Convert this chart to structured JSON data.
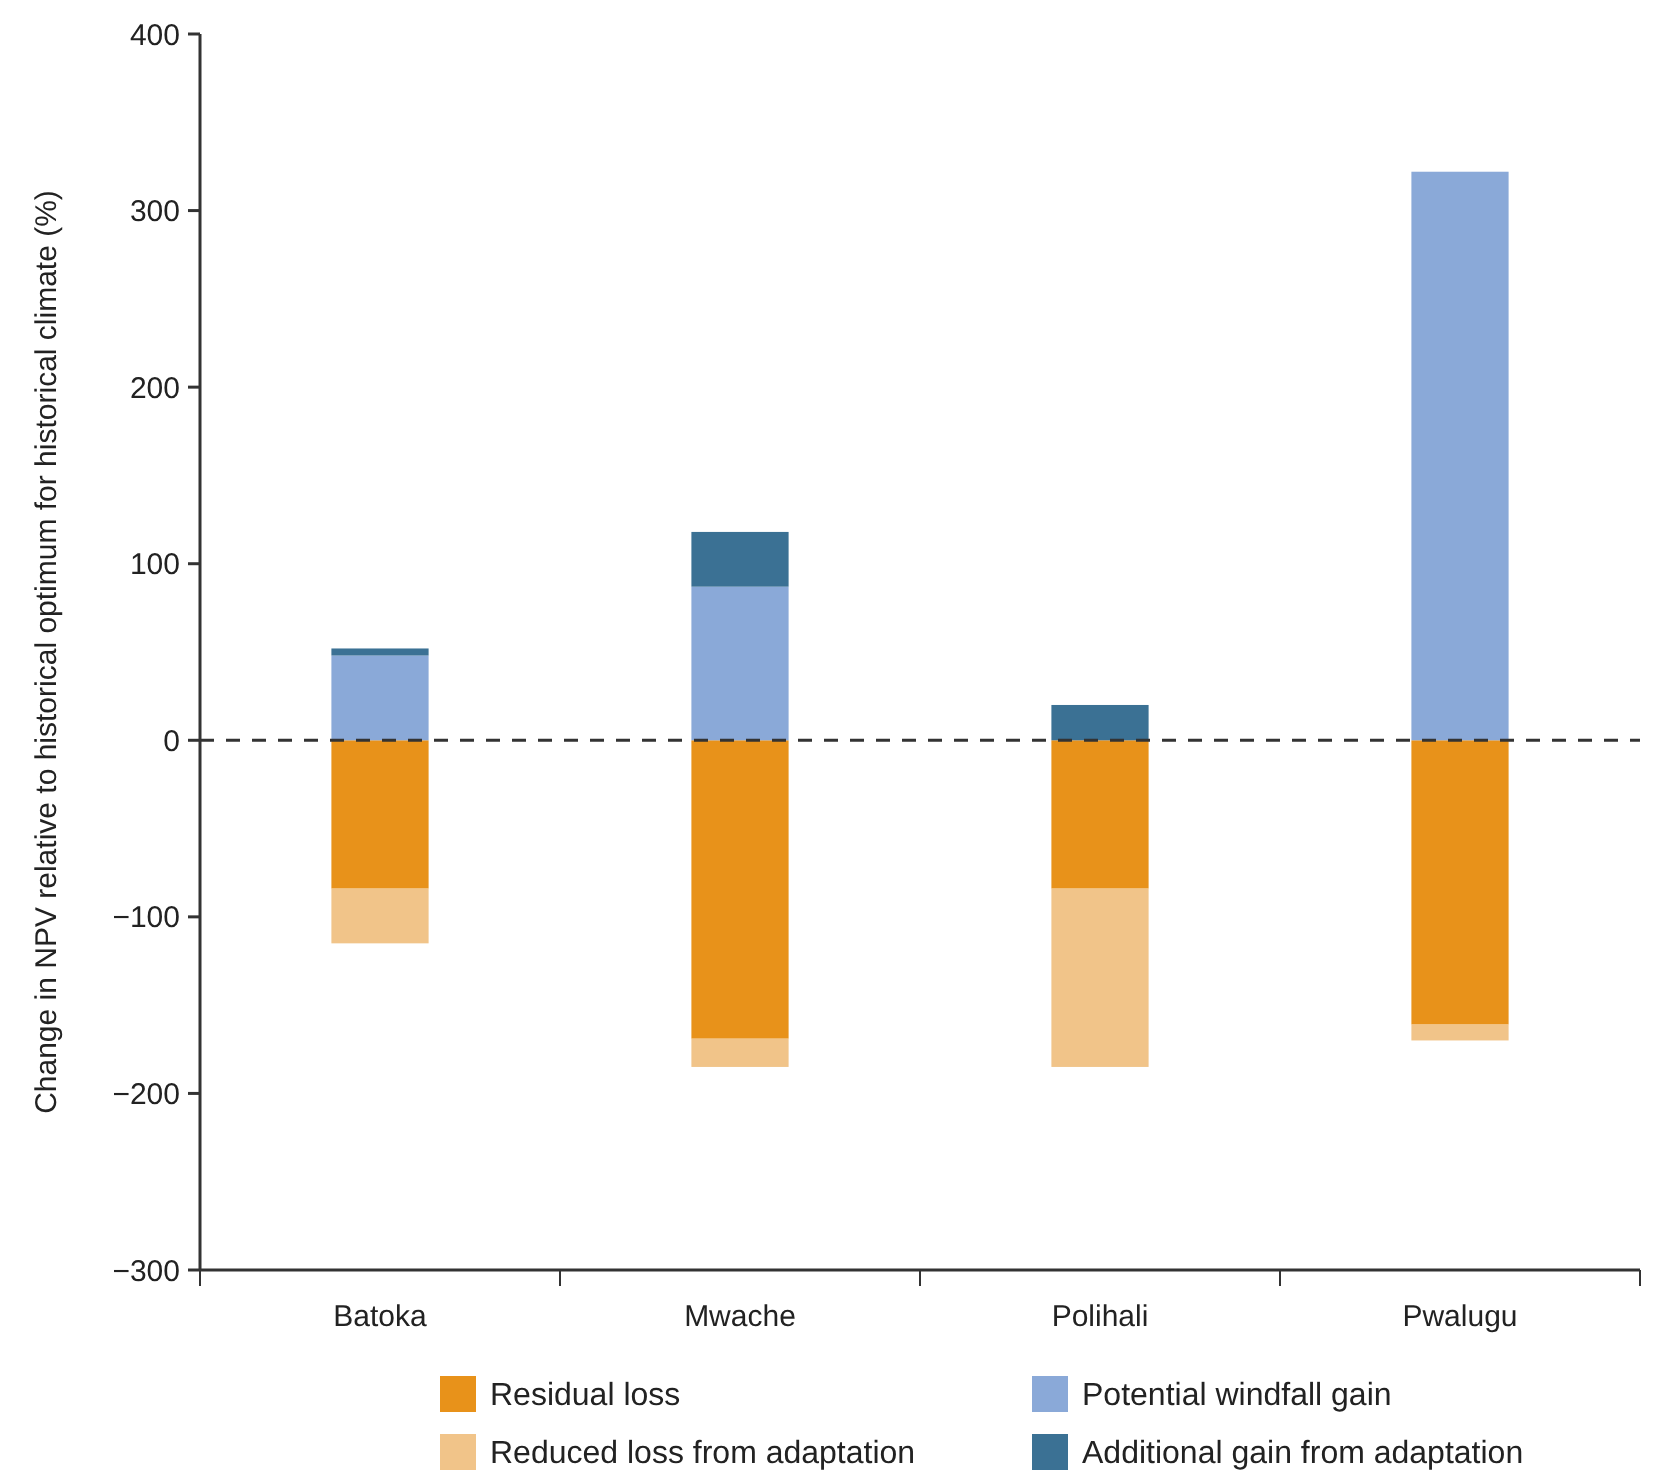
{
  "chart_data": {
    "type": "bar",
    "stacked": true,
    "ylabel": "Change in NPV relative to historical optimum for historical climate (%)",
    "categories": [
      "Batoka",
      "Mwache",
      "Polihali",
      "Pwalugu"
    ],
    "series": [
      {
        "name": "Residual loss",
        "color": "#e8921a",
        "values": [
          -84,
          -169,
          -84,
          -161
        ]
      },
      {
        "name": "Reduced loss from adaptation",
        "color": "#f1c489",
        "values": [
          -31,
          -16,
          -101,
          -9
        ]
      },
      {
        "name": "Potential windfall gain",
        "color": "#8aa9d8",
        "values": [
          48,
          87,
          0,
          322
        ]
      },
      {
        "name": "Additional gain from adaptation",
        "color": "#3b7194",
        "values": [
          4,
          31,
          20,
          0
        ]
      }
    ],
    "ylim": [
      -300,
      400
    ],
    "yticks": [
      {
        "value": -300,
        "label": "−300"
      },
      {
        "value": -200,
        "label": "−200"
      },
      {
        "value": -100,
        "label": "−100"
      },
      0,
      100,
      200,
      300,
      400
    ],
    "ref_lines": [
      {
        "axis": "y",
        "value": 0,
        "line_style": "dashed",
        "color": "#333333"
      }
    ],
    "grid": false,
    "legend": "bottom"
  }
}
